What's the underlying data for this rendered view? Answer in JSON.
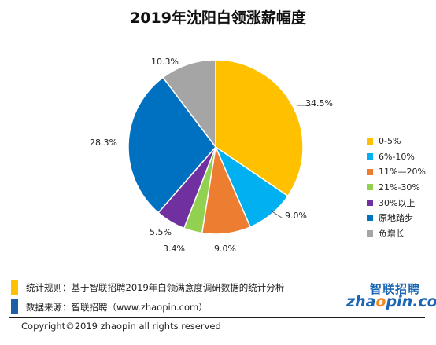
{
  "chart_data": {
    "type": "pie",
    "title": "2019年沈阳白领涨薪幅度",
    "categories": [
      "0-5%",
      "6%-10%",
      "11%—20%",
      "21%-30%",
      "30%以上",
      "原地踏步",
      "负增长"
    ],
    "values": [
      34.5,
      9.0,
      9.0,
      3.4,
      5.5,
      28.3,
      10.3
    ],
    "data_labels": [
      "34.5%",
      "9.0%",
      "9.0%",
      "3.4%",
      "5.5%",
      "28.3%",
      "10.3%"
    ],
    "colors": [
      "#ffc000",
      "#00b0f0",
      "#ed7d31",
      "#92d050",
      "#7030a0",
      "#0070c0",
      "#a5a5a5"
    ],
    "legend_position": "right"
  },
  "footer": {
    "rule_text": "统计规则：基于智联招聘2019年白领满意度调研数据的统计分析",
    "source_text": "数据来源：智联招聘（www.zhaopin.com）",
    "rule_color": "#ffc000",
    "source_color": "#1f5fa8"
  },
  "brand": {
    "logo_cn": "智联招聘",
    "logo_en_prefix": "zha",
    "logo_en_o": "o",
    "logo_en_suffix": "pin.com"
  },
  "copyright": "Copyright©2019 zhaopin all rights reserved"
}
